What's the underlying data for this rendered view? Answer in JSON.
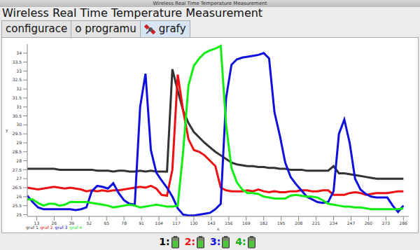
{
  "window_title": "Wireless Real Time Temperature Measurement",
  "header": "Wireless Real Time Temperature Measurement",
  "tabs": [
    {
      "label": "configurace",
      "selected": false
    },
    {
      "label": "o programu",
      "selected": false
    },
    {
      "label": "grafy",
      "selected": true
    }
  ],
  "chart_data": {
    "type": "line",
    "x_label": "x",
    "y_label": "y",
    "grid": false,
    "x": [
      6,
      10,
      14,
      18,
      22,
      26,
      30,
      34,
      38,
      42,
      46,
      50,
      54,
      58,
      62,
      66,
      70,
      74,
      78,
      82,
      86,
      90,
      94,
      98,
      102,
      106,
      110,
      114,
      118,
      122,
      126,
      130,
      134,
      138,
      142,
      146,
      150,
      154,
      158,
      162,
      166,
      170,
      174,
      178,
      182,
      186,
      190,
      194,
      198,
      202,
      206,
      210,
      214,
      218,
      222,
      226,
      230,
      234,
      238,
      242,
      246,
      250,
      254,
      258,
      262,
      266,
      270,
      274,
      278,
      282,
      286
    ],
    "xlim": [
      6,
      290
    ],
    "xticks": [
      13,
      26,
      39,
      52,
      65,
      78,
      91,
      104,
      117,
      130,
      143,
      156,
      169,
      182,
      195,
      208,
      221,
      234,
      247,
      260,
      273,
      286
    ],
    "ylim": [
      24.9,
      34.5
    ],
    "yticks": [
      25,
      25.5,
      26,
      26.5,
      27,
      27.5,
      28,
      28.5,
      29,
      29.5,
      30,
      30.5,
      31,
      31.5,
      32,
      32.5,
      33,
      33.5,
      34
    ],
    "series": [
      {
        "name": "graf 1",
        "color": "#333333",
        "values": [
          27.55,
          27.55,
          27.55,
          27.55,
          27.55,
          27.55,
          27.5,
          27.5,
          27.5,
          27.5,
          27.5,
          27.5,
          27.5,
          27.45,
          27.45,
          27.45,
          27.4,
          27.45,
          27.45,
          27.4,
          27.4,
          27.45,
          27.4,
          27.45,
          27.4,
          27.4,
          27.4,
          33.1,
          31.9,
          30.8,
          30.1,
          29.6,
          29.3,
          29.0,
          28.75,
          28.5,
          28.3,
          28.1,
          27.9,
          27.8,
          27.75,
          27.7,
          27.7,
          27.65,
          27.65,
          27.6,
          27.6,
          27.55,
          27.55,
          27.5,
          27.5,
          27.5,
          27.45,
          27.45,
          27.45,
          27.45,
          27.45,
          27.7,
          27.3,
          27.3,
          27.25,
          27.2,
          27.15,
          27.1,
          27.05,
          27.0,
          27.0,
          27.0,
          27.0,
          27.0,
          27.0
        ]
      },
      {
        "name": "graf 2",
        "color": "#ee1111",
        "values": [
          26.5,
          26.45,
          26.4,
          26.45,
          26.5,
          26.55,
          26.5,
          26.45,
          26.5,
          26.45,
          26.4,
          26.3,
          26.35,
          26.3,
          26.35,
          26.3,
          26.35,
          26.35,
          26.4,
          26.45,
          26.5,
          26.55,
          26.5,
          26.6,
          26.45,
          26.1,
          26.05,
          27.5,
          32.8,
          30.8,
          29.2,
          28.6,
          28.5,
          28.3,
          28.0,
          27.7,
          26.5,
          26.35,
          26.3,
          26.3,
          26.3,
          26.35,
          26.3,
          26.4,
          26.3,
          26.25,
          26.3,
          26.25,
          26.25,
          26.3,
          26.3,
          26.35,
          26.35,
          26.3,
          26.3,
          26.35,
          26.35,
          26.1,
          26.1,
          26.1,
          26.2,
          26.25,
          26.2,
          26.1,
          26.15,
          26.2,
          26.2,
          26.2,
          26.25,
          26.3,
          26.3
        ]
      },
      {
        "name": "graf 3",
        "color": "#1010dd",
        "values": [
          26.05,
          25.7,
          25.4,
          25.3,
          25.3,
          25.3,
          25.3,
          25.3,
          25.3,
          25.25,
          25.3,
          25.4,
          26.3,
          26.6,
          26.55,
          26.45,
          26.75,
          26.2,
          25.8,
          25.6,
          25.55,
          31.0,
          32.85,
          28.6,
          27.35,
          26.9,
          26.5,
          26.0,
          25.35,
          25.0,
          24.95,
          24.95,
          25.0,
          25.05,
          25.1,
          25.3,
          25.6,
          31.5,
          33.35,
          33.65,
          33.75,
          33.8,
          33.85,
          33.9,
          34.0,
          33.7,
          30.7,
          29.4,
          27.9,
          27.1,
          26.7,
          26.35,
          26.0,
          25.85,
          25.7,
          25.65,
          25.7,
          26.3,
          29.5,
          30.3,
          29.0,
          27.0,
          26.4,
          26.15,
          26.0,
          25.95,
          25.95,
          25.95,
          25.5,
          25.15,
          25.5
        ]
      },
      {
        "name": "graf 4",
        "color": "#11ee11",
        "values": [
          25.85,
          25.85,
          25.65,
          25.5,
          25.6,
          25.6,
          25.5,
          25.55,
          25.7,
          25.7,
          25.7,
          25.7,
          25.65,
          25.6,
          25.55,
          25.5,
          25.4,
          25.45,
          25.5,
          25.55,
          25.5,
          25.4,
          25.45,
          25.5,
          25.55,
          25.5,
          25.45,
          25.45,
          25.5,
          28.5,
          32.2,
          33.3,
          33.7,
          34.0,
          34.15,
          34.25,
          34.4,
          30.0,
          27.6,
          26.8,
          26.4,
          26.2,
          26.2,
          26.15,
          26.0,
          25.95,
          25.9,
          25.9,
          25.9,
          26.05,
          26.1,
          26.05,
          26.0,
          26.0,
          25.95,
          25.8,
          25.6,
          25.55,
          25.5,
          25.45,
          25.45,
          25.4,
          25.4,
          25.35,
          25.3,
          25.3,
          25.3,
          25.3,
          25.3,
          25.3,
          25.35
        ]
      }
    ]
  },
  "status": [
    {
      "label": "1:",
      "color": "#000000"
    },
    {
      "label": "2:",
      "color": "#ee1111"
    },
    {
      "label": "3:",
      "color": "#1010dd"
    },
    {
      "label": "4:",
      "color": "#11aa11"
    }
  ]
}
